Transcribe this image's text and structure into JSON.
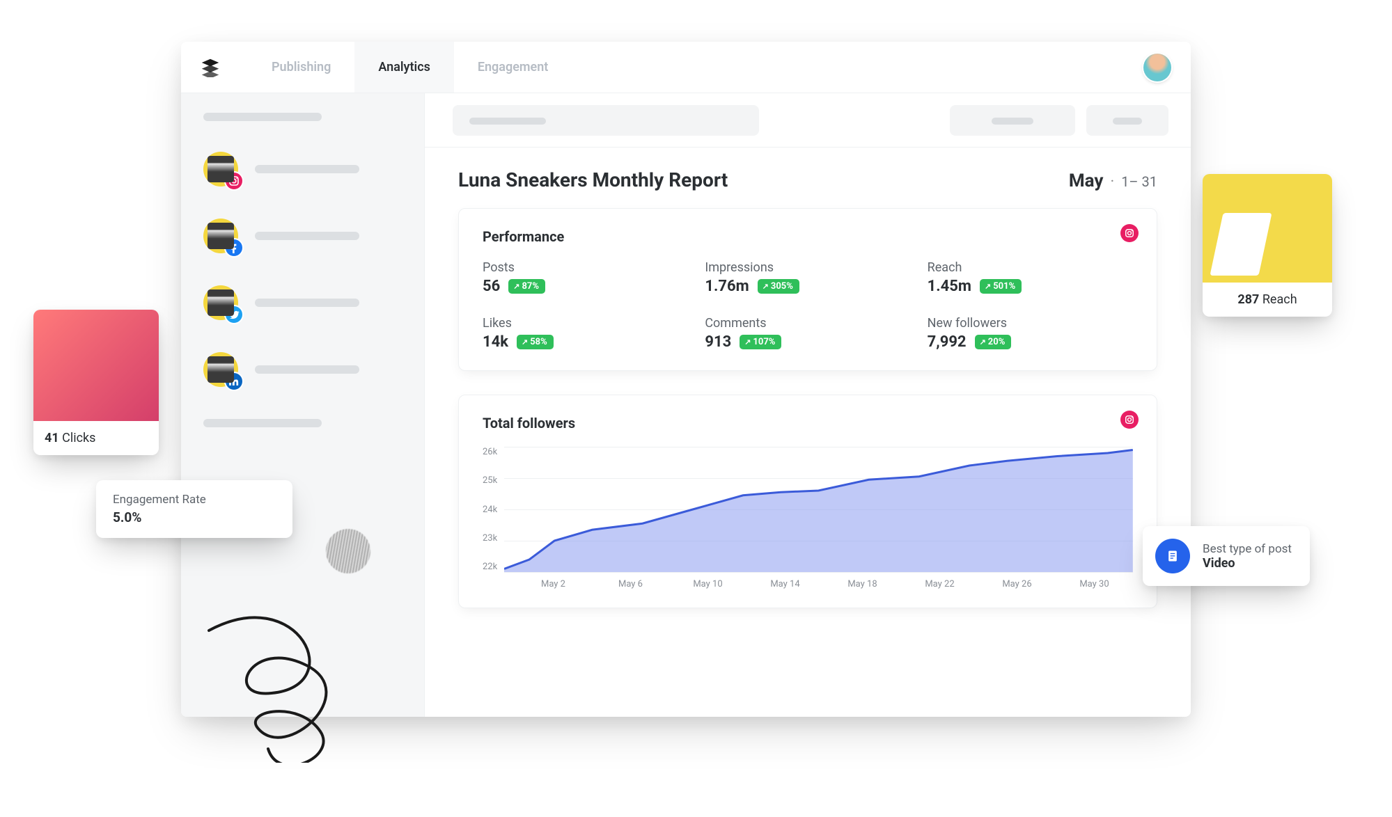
{
  "nav": {
    "tabs": [
      "Publishing",
      "Analytics",
      "Engagement"
    ],
    "active_index": 1
  },
  "sidebar": {
    "accounts": [
      {
        "network": "instagram",
        "badge_color": "#e81e63"
      },
      {
        "network": "facebook",
        "badge_color": "#1877f2"
      },
      {
        "network": "twitter",
        "badge_color": "#1da1f2"
      },
      {
        "network": "linkedin",
        "badge_color": "#0a66c2"
      }
    ]
  },
  "report": {
    "title": "Luna Sneakers Monthly Report",
    "month": "May",
    "range": "1– 31"
  },
  "performance": {
    "title": "Performance",
    "icon_color": "#e81e63",
    "metrics": [
      {
        "label": "Posts",
        "value": "56",
        "delta": "87%"
      },
      {
        "label": "Impressions",
        "value": "1.76m",
        "delta": "305%"
      },
      {
        "label": "Reach",
        "value": "1.45m",
        "delta": "501%"
      },
      {
        "label": "Likes",
        "value": "14k",
        "delta": "58%"
      },
      {
        "label": "Comments",
        "value": "913",
        "delta": "107%"
      },
      {
        "label": "New followers",
        "value": "7,992",
        "delta": "20%"
      }
    ],
    "delta_badge_color": "#2fbf5a"
  },
  "followers_chart": {
    "title": "Total followers",
    "type": "area",
    "icon_color": "#e81e63",
    "y_ticks": [
      "26k",
      "25k",
      "24k",
      "23k",
      "22k"
    ],
    "ylim": [
      22000,
      26000
    ],
    "x_ticks": [
      "May 2",
      "May 6",
      "May 10",
      "May 14",
      "May 18",
      "May 22",
      "May 26",
      "May 30"
    ],
    "line_color": "#3b5bd9",
    "fill_color": "#8c9cf0",
    "fill_opacity": 0.55,
    "line_width": 3,
    "grid_color": "#eef0f2",
    "background_color": "#ffffff",
    "tick_fontsize": 13,
    "tick_color": "#8a8f96",
    "points": [
      [
        0,
        22100
      ],
      [
        4,
        22400
      ],
      [
        8,
        23000
      ],
      [
        14,
        23350
      ],
      [
        22,
        23550
      ],
      [
        30,
        24000
      ],
      [
        38,
        24450
      ],
      [
        44,
        24550
      ],
      [
        50,
        24600
      ],
      [
        58,
        24950
      ],
      [
        66,
        25050
      ],
      [
        74,
        25400
      ],
      [
        80,
        25550
      ],
      [
        88,
        25700
      ],
      [
        96,
        25800
      ],
      [
        100,
        25900
      ]
    ]
  },
  "float_clicks": {
    "value": "41",
    "label": "Clicks"
  },
  "float_rate": {
    "label": "Engagement Rate",
    "value": "5.0%"
  },
  "float_reach": {
    "value": "287",
    "label": "Reach"
  },
  "float_best": {
    "label": "Best type of post",
    "value": "Video"
  }
}
